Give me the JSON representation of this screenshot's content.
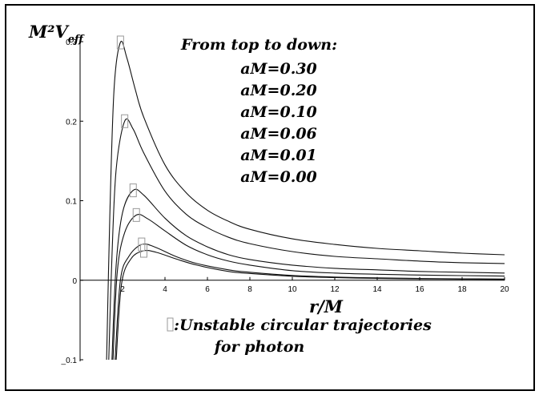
{
  "chart_data": {
    "type": "line",
    "title": "",
    "xlabel": "r/M",
    "ylabel_main": "M²V",
    "ylabel_sub": "eff",
    "xlim": [
      0,
      20
    ],
    "ylim": [
      -0.1,
      0.3
    ],
    "x_ticks": [
      2,
      4,
      6,
      8,
      10,
      12,
      14,
      16,
      18,
      20
    ],
    "y_ticks": [
      -0.1,
      0,
      0.1,
      0.2,
      0.3
    ],
    "x_tick_labels": [
      "2",
      "4",
      "6",
      "8",
      "10",
      "12",
      "14",
      "16",
      "18",
      "20"
    ],
    "y_tick_labels": [
      "_0.1",
      "0",
      "0.1",
      "0.2",
      "0.3"
    ],
    "grid": false,
    "legend_title": "From top to down:",
    "legend": [
      "aM=0.30",
      "aM=0.20",
      "aM=0.10",
      "aM=0.06",
      "aM=0.01",
      "aM=0.00"
    ],
    "series": [
      {
        "name": "aM=0.30",
        "values": [
          [
            1.25,
            -0.1
          ],
          [
            1.4,
            0.08
          ],
          [
            1.6,
            0.24
          ],
          [
            1.9,
            0.299
          ],
          [
            2.2,
            0.28
          ],
          [
            2.6,
            0.24
          ],
          [
            3,
            0.205
          ],
          [
            4,
            0.145
          ],
          [
            5,
            0.11
          ],
          [
            6,
            0.088
          ],
          [
            7,
            0.074
          ],
          [
            8,
            0.064
          ],
          [
            10,
            0.052
          ],
          [
            12,
            0.045
          ],
          [
            14,
            0.04
          ],
          [
            16,
            0.037
          ],
          [
            18,
            0.034
          ],
          [
            20,
            0.032
          ]
        ]
      },
      {
        "name": "aM=0.20",
        "values": [
          [
            1.35,
            -0.1
          ],
          [
            1.5,
            0.03
          ],
          [
            1.7,
            0.14
          ],
          [
            2.1,
            0.2
          ],
          [
            2.5,
            0.19
          ],
          [
            3,
            0.16
          ],
          [
            4,
            0.112
          ],
          [
            5,
            0.083
          ],
          [
            6,
            0.066
          ],
          [
            7,
            0.054
          ],
          [
            8,
            0.046
          ],
          [
            10,
            0.036
          ],
          [
            12,
            0.03
          ],
          [
            14,
            0.027
          ],
          [
            16,
            0.024
          ],
          [
            18,
            0.022
          ],
          [
            20,
            0.021
          ]
        ]
      },
      {
        "name": "aM=0.10",
        "values": [
          [
            1.5,
            -0.1
          ],
          [
            1.7,
            0.02
          ],
          [
            2,
            0.085
          ],
          [
            2.5,
            0.113
          ],
          [
            3,
            0.107
          ],
          [
            4,
            0.078
          ],
          [
            5,
            0.056
          ],
          [
            6,
            0.042
          ],
          [
            7,
            0.032
          ],
          [
            8,
            0.026
          ],
          [
            10,
            0.019
          ],
          [
            12,
            0.015
          ],
          [
            14,
            0.013
          ],
          [
            16,
            0.011
          ],
          [
            18,
            0.01
          ],
          [
            20,
            0.009
          ]
        ]
      },
      {
        "name": "aM=0.06",
        "values": [
          [
            1.55,
            -0.1
          ],
          [
            1.75,
            0.01
          ],
          [
            2.1,
            0.06
          ],
          [
            2.65,
            0.082
          ],
          [
            3.2,
            0.077
          ],
          [
            4,
            0.062
          ],
          [
            5,
            0.044
          ],
          [
            6,
            0.032
          ],
          [
            7,
            0.024
          ],
          [
            8,
            0.019
          ],
          [
            10,
            0.012
          ],
          [
            12,
            0.009
          ],
          [
            14,
            0.0075
          ],
          [
            16,
            0.0065
          ],
          [
            18,
            0.0058
          ],
          [
            20,
            0.0052
          ]
        ]
      },
      {
        "name": "aM=0.01",
        "values": [
          [
            1.65,
            -0.1
          ],
          [
            1.9,
            0.0
          ],
          [
            2.3,
            0.03
          ],
          [
            2.9,
            0.045
          ],
          [
            3.5,
            0.042
          ],
          [
            4.5,
            0.03
          ],
          [
            5.5,
            0.021
          ],
          [
            7,
            0.013
          ],
          [
            8,
            0.01
          ],
          [
            10,
            0.006
          ],
          [
            12,
            0.004
          ],
          [
            14,
            0.003
          ],
          [
            16,
            0.0023
          ],
          [
            18,
            0.0018
          ],
          [
            20,
            0.0015
          ]
        ]
      },
      {
        "name": "aM=0.00",
        "values": [
          [
            1.7,
            -0.1
          ],
          [
            1.95,
            -0.005
          ],
          [
            2.4,
            0.027
          ],
          [
            3,
            0.037
          ],
          [
            3.6,
            0.035
          ],
          [
            4.5,
            0.027
          ],
          [
            5.5,
            0.019
          ],
          [
            7,
            0.011
          ],
          [
            8,
            0.0085
          ],
          [
            10,
            0.005
          ],
          [
            12,
            0.0033
          ],
          [
            14,
            0.0023
          ],
          [
            16,
            0.0017
          ],
          [
            18,
            0.0013
          ],
          [
            20,
            0.001
          ]
        ]
      }
    ],
    "unstable_markers": [
      [
        1.9,
        0.299
      ],
      [
        2.1,
        0.2
      ],
      [
        2.5,
        0.113
      ],
      [
        2.65,
        0.082
      ],
      [
        2.9,
        0.045
      ],
      [
        3.0,
        0.037
      ]
    ],
    "marker_note_lines": [
      ":Unstable circular trajectories",
      "for photon"
    ]
  }
}
